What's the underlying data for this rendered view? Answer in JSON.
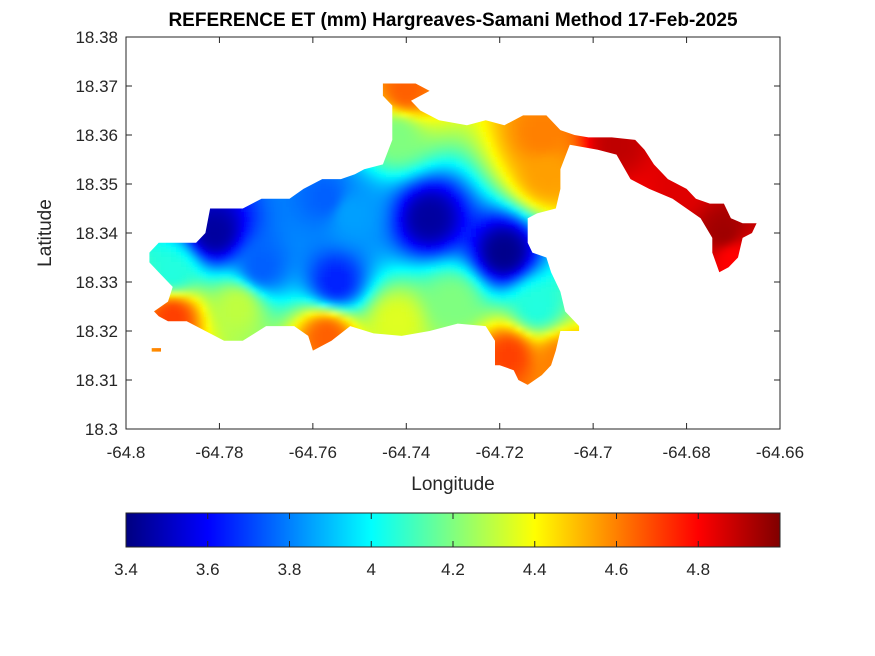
{
  "chart_data": {
    "type": "heatmap",
    "title": "REFERENCE ET (mm) Hargreaves-Samani Method  17-Feb-2025",
    "xlabel": "Longitude",
    "ylabel": "Latitude",
    "xlim": [
      -64.8,
      -64.66
    ],
    "ylim": [
      18.3,
      18.38
    ],
    "xticks": [
      -64.8,
      -64.78,
      -64.76,
      -64.74,
      -64.72,
      -64.7,
      -64.68,
      -64.66
    ],
    "xtick_labels": [
      "-64.8",
      "-64.78",
      "-64.76",
      "-64.74",
      "-64.72",
      "-64.7",
      "-64.68",
      "-64.66"
    ],
    "yticks": [
      18.3,
      18.31,
      18.32,
      18.33,
      18.34,
      18.35,
      18.36,
      18.37,
      18.38
    ],
    "ytick_labels": [
      "18.3",
      "18.31",
      "18.32",
      "18.33",
      "18.34",
      "18.35",
      "18.36",
      "18.37",
      "18.38"
    ],
    "grid": false,
    "colormap": "jet",
    "colorbar": {
      "orientation": "horizontal",
      "placement": "bottom",
      "clim": [
        3.4,
        5.0
      ],
      "ticks": [
        3.4,
        3.6,
        3.8,
        4.0,
        4.2,
        4.4,
        4.6,
        4.8
      ],
      "tick_labels": [
        "3.4",
        "3.6",
        "3.8",
        "4",
        "4.2",
        "4.4",
        "4.6",
        "4.8"
      ]
    },
    "features": [
      {
        "lon": -64.781,
        "lat": 18.34,
        "value": 3.45
      },
      {
        "lon": -64.735,
        "lat": 18.343,
        "value": 3.45
      },
      {
        "lon": -64.719,
        "lat": 18.336,
        "value": 3.42
      },
      {
        "lon": -64.752,
        "lat": 18.344,
        "value": 3.85
      },
      {
        "lon": -64.757,
        "lat": 18.347,
        "value": 3.75
      },
      {
        "lon": -64.771,
        "lat": 18.333,
        "value": 3.75
      },
      {
        "lon": -64.755,
        "lat": 18.33,
        "value": 3.65
      },
      {
        "lon": -64.79,
        "lat": 18.332,
        "value": 4.05
      },
      {
        "lon": -64.776,
        "lat": 18.325,
        "value": 4.3
      },
      {
        "lon": -64.742,
        "lat": 18.322,
        "value": 4.35
      },
      {
        "lon": -64.742,
        "lat": 18.36,
        "value": 4.2
      },
      {
        "lon": -64.73,
        "lat": 18.326,
        "value": 4.2
      },
      {
        "lon": -64.712,
        "lat": 18.325,
        "value": 4.05
      },
      {
        "lon": -64.79,
        "lat": 18.323,
        "value": 4.7
      },
      {
        "lon": -64.757,
        "lat": 18.319,
        "value": 4.65
      },
      {
        "lon": -64.74,
        "lat": 18.369,
        "value": 4.65
      },
      {
        "lon": -64.711,
        "lat": 18.36,
        "value": 4.6
      },
      {
        "lon": -64.71,
        "lat": 18.352,
        "value": 4.55
      },
      {
        "lon": -64.718,
        "lat": 18.315,
        "value": 4.7
      },
      {
        "lon": -64.707,
        "lat": 18.314,
        "value": 4.6
      },
      {
        "lon": -64.695,
        "lat": 18.358,
        "value": 4.9
      },
      {
        "lon": -64.681,
        "lat": 18.35,
        "value": 4.85
      },
      {
        "lon": -64.672,
        "lat": 18.34,
        "value": 4.95
      },
      {
        "lon": -64.67,
        "lat": 18.335,
        "value": 4.8
      }
    ],
    "region": [
      [
        [
          -64.795,
          18.336
        ],
        [
          -64.793,
          18.338
        ],
        [
          -64.785,
          18.338
        ],
        [
          -64.783,
          18.34
        ],
        [
          -64.782,
          18.345
        ],
        [
          -64.775,
          18.345
        ],
        [
          -64.771,
          18.347
        ],
        [
          -64.765,
          18.347
        ],
        [
          -64.762,
          18.349
        ],
        [
          -64.758,
          18.351
        ],
        [
          -64.754,
          18.351
        ],
        [
          -64.751,
          18.352
        ],
        [
          -64.749,
          18.353
        ],
        [
          -64.745,
          18.354
        ],
        [
          -64.743,
          18.359
        ],
        [
          -64.743,
          18.366
        ],
        [
          -64.745,
          18.368
        ],
        [
          -64.745,
          18.3705
        ],
        [
          -64.738,
          18.3705
        ],
        [
          -64.735,
          18.369
        ],
        [
          -64.739,
          18.367
        ],
        [
          -64.737,
          18.365
        ],
        [
          -64.733,
          18.363
        ],
        [
          -64.727,
          18.362
        ],
        [
          -64.723,
          18.363
        ],
        [
          -64.719,
          18.362
        ],
        [
          -64.715,
          18.364
        ],
        [
          -64.71,
          18.364
        ],
        [
          -64.707,
          18.361
        ],
        [
          -64.704,
          18.36
        ],
        [
          -64.701,
          18.3595
        ],
        [
          -64.696,
          18.3595
        ],
        [
          -64.691,
          18.359
        ],
        [
          -64.689,
          18.357
        ],
        [
          -64.687,
          18.354
        ],
        [
          -64.684,
          18.351
        ],
        [
          -64.68,
          18.349
        ],
        [
          -64.678,
          18.347
        ],
        [
          -64.675,
          18.346
        ],
        [
          -64.672,
          18.346
        ],
        [
          -64.6705,
          18.343
        ],
        [
          -64.668,
          18.342
        ],
        [
          -64.665,
          18.342
        ],
        [
          -64.666,
          18.34
        ],
        [
          -64.668,
          18.339
        ],
        [
          -64.669,
          18.335
        ],
        [
          -64.671,
          18.333
        ],
        [
          -64.673,
          18.332
        ],
        [
          -64.6745,
          18.336
        ],
        [
          -64.6745,
          18.339
        ],
        [
          -64.677,
          18.343
        ],
        [
          -64.683,
          18.347
        ],
        [
          -64.688,
          18.349
        ],
        [
          -64.692,
          18.351
        ],
        [
          -64.695,
          18.356
        ],
        [
          -64.699,
          18.357
        ],
        [
          -64.705,
          18.358
        ],
        [
          -64.707,
          18.353
        ],
        [
          -64.707,
          18.349
        ],
        [
          -64.708,
          18.345
        ],
        [
          -64.712,
          18.344
        ],
        [
          -64.714,
          18.343
        ],
        [
          -64.714,
          18.338
        ],
        [
          -64.713,
          18.336
        ],
        [
          -64.71,
          18.335
        ],
        [
          -64.709,
          18.332
        ],
        [
          -64.707,
          18.328
        ],
        [
          -64.706,
          18.324
        ],
        [
          -64.703,
          18.321
        ],
        [
          -64.703,
          18.32
        ],
        [
          -64.707,
          18.32
        ],
        [
          -64.708,
          18.316
        ],
        [
          -64.709,
          18.313
        ],
        [
          -64.711,
          18.311
        ],
        [
          -64.714,
          18.309
        ],
        [
          -64.716,
          18.31
        ],
        [
          -64.717,
          18.312
        ],
        [
          -64.72,
          18.313
        ],
        [
          -64.721,
          18.313
        ],
        [
          -64.721,
          18.318
        ],
        [
          -64.723,
          18.321
        ],
        [
          -64.729,
          18.3215
        ],
        [
          -64.735,
          18.32
        ],
        [
          -64.741,
          18.319
        ],
        [
          -64.747,
          18.3195
        ],
        [
          -64.752,
          18.321
        ],
        [
          -64.756,
          18.318
        ],
        [
          -64.76,
          18.316
        ],
        [
          -64.761,
          18.319
        ],
        [
          -64.764,
          18.321
        ],
        [
          -64.77,
          18.321
        ],
        [
          -64.775,
          18.318
        ],
        [
          -64.779,
          18.318
        ],
        [
          -64.781,
          18.319
        ],
        [
          -64.783,
          18.32
        ],
        [
          -64.787,
          18.322
        ],
        [
          -64.791,
          18.322
        ],
        [
          -64.793,
          18.323
        ],
        [
          -64.794,
          18.324
        ],
        [
          -64.791,
          18.326
        ],
        [
          -64.79,
          18.329
        ],
        [
          -64.793,
          18.332
        ],
        [
          -64.795,
          18.334
        ]
      ],
      [
        [
          -64.7945,
          18.3165
        ],
        [
          -64.7925,
          18.3165
        ],
        [
          -64.7925,
          18.3158
        ],
        [
          -64.7945,
          18.3158
        ]
      ]
    ]
  }
}
